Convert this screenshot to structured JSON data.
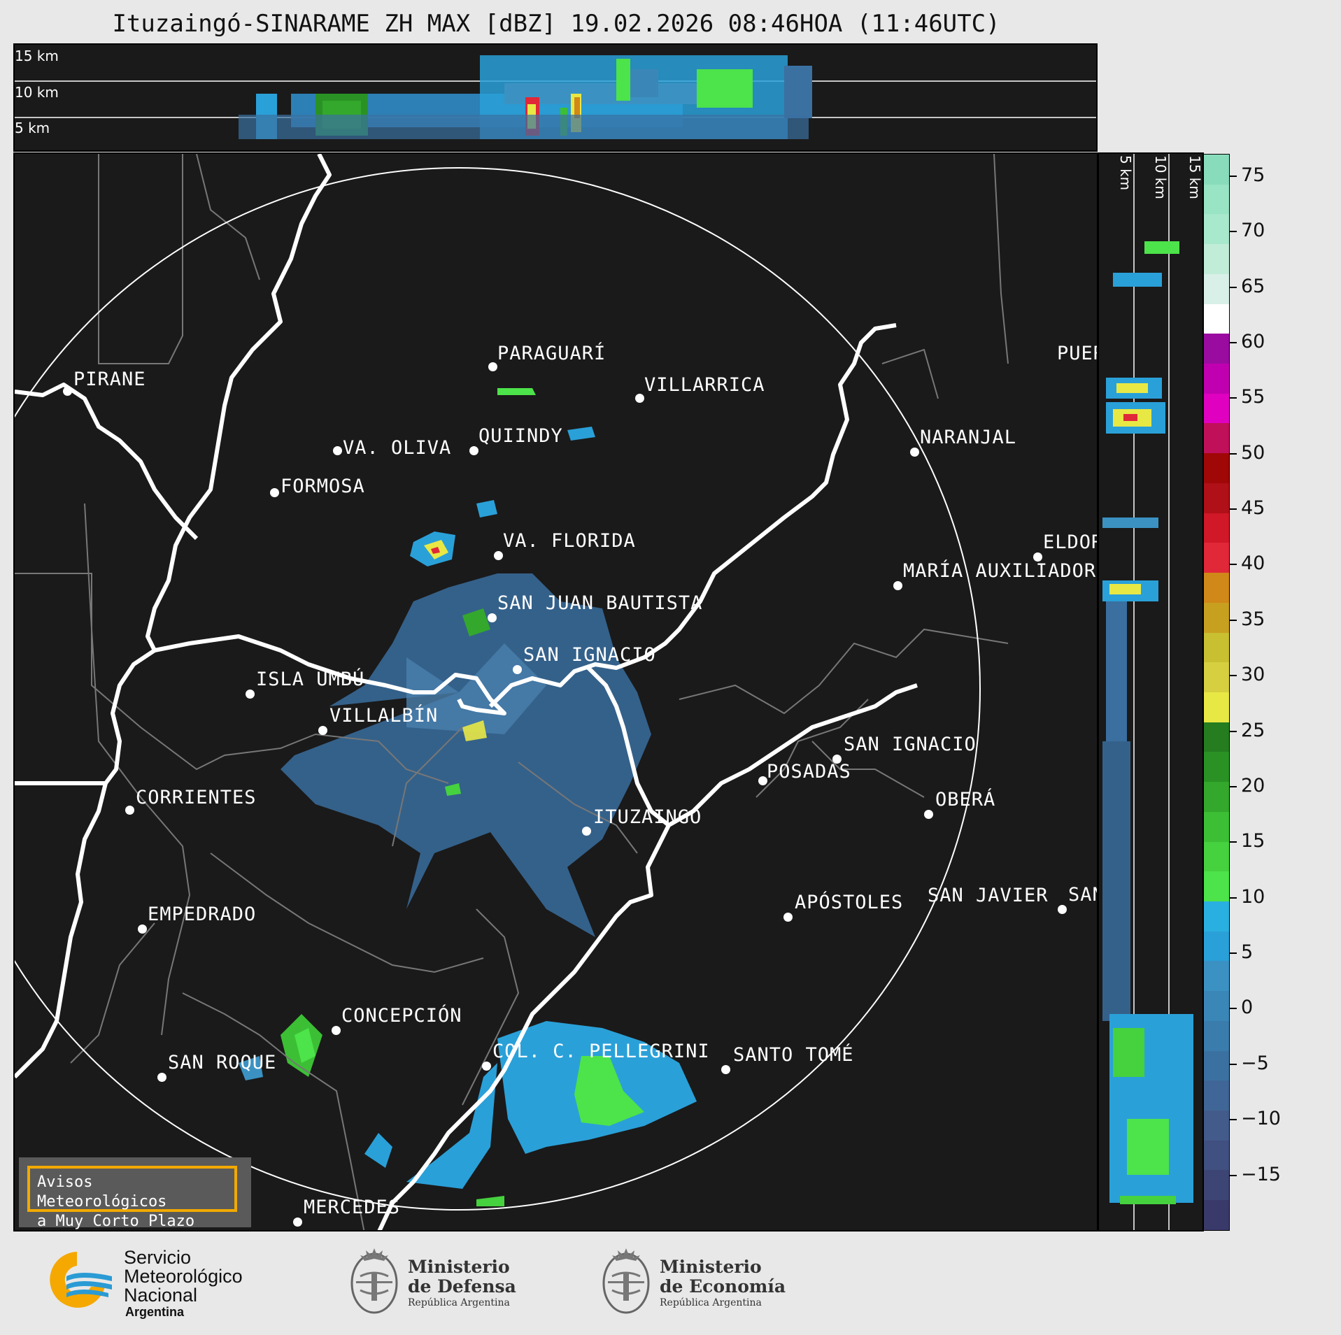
{
  "title": "Ituzaingó-SINARAME ZH MAX [dBZ] 19.02.2026 08:46HOA (11:46UTC)",
  "height_labels_top": [
    "15 km",
    "10 km",
    "5 km"
  ],
  "height_labels_side": [
    "5 km",
    "10 km",
    "15 km"
  ],
  "cities": [
    {
      "name": "PARAGUARÍ"
    },
    {
      "name": "VILLARRICA"
    },
    {
      "name": "PIRANE"
    },
    {
      "name": "QUIINDY"
    },
    {
      "name": "VA. OLIVA"
    },
    {
      "name": "NARANJAL"
    },
    {
      "name": "FORMOSA"
    },
    {
      "name": "VA. FLORIDA"
    },
    {
      "name": "ELDOR"
    },
    {
      "name": "MARÍA AUXILIADOR"
    },
    {
      "name": "SAN JUAN BAUTISTA"
    },
    {
      "name": "SAN IGNACIO"
    },
    {
      "name": "ISLA UMBÚ"
    },
    {
      "name": "VILLALBÍN"
    },
    {
      "name": "SAN IGNACIO"
    },
    {
      "name": "POSADAS"
    },
    {
      "name": "CORRIENTES"
    },
    {
      "name": "ITUZAINGÓ"
    },
    {
      "name": "OBERÁ"
    },
    {
      "name": "EMPEDRADO"
    },
    {
      "name": "APÓSTOLES"
    },
    {
      "name": "SAN JAVIER"
    },
    {
      "name": "SAN"
    },
    {
      "name": "CONCEPCIÓN"
    },
    {
      "name": "COL. C. PELLEGRINI"
    },
    {
      "name": "SANTO TOMÉ"
    },
    {
      "name": "SAN ROQUE"
    },
    {
      "name": "MERCEDES"
    },
    {
      "name": "PUER"
    }
  ],
  "colorbar": {
    "ticks": [
      "75",
      "70",
      "65",
      "60",
      "55",
      "50",
      "45",
      "40",
      "35",
      "30",
      "25",
      "20",
      "15",
      "10",
      "5",
      "0",
      "−5",
      "−10",
      "−15"
    ],
    "min": -20,
    "max": 77,
    "colors": [
      "#3a3a6a",
      "#3d4575",
      "#405080",
      "#435b8b",
      "#3f6696",
      "#3b71a1",
      "#3a7cac",
      "#3a87b7",
      "#3b92c2",
      "#2aa0d8",
      "#2ab0e0",
      "#4de34a",
      "#46d13f",
      "#3cbf35",
      "#33a82c",
      "#2a9225",
      "#257d20",
      "#e8e845",
      "#d6d040",
      "#c8c030",
      "#c8a020",
      "#d08818",
      "#e02838",
      "#d01828",
      "#b01018",
      "#a00808",
      "#c0105a",
      "#e000c0",
      "#c000b0",
      "#9a0ca0",
      "#ffffff",
      "#d8f0e8",
      "#c0ecd8",
      "#a8e8cc",
      "#98e4c4",
      "#88dcbc"
    ]
  },
  "warning": {
    "line1": "Avisos Meteorológicos",
    "line2": "a Muy Corto Plazo"
  },
  "logos": {
    "smn": {
      "line1": "Servicio",
      "line2": "Meteorológico",
      "line3": "Nacional",
      "line4": "Argentina"
    },
    "defensa": {
      "line1": "Ministerio",
      "line2": "de Defensa",
      "line3": "República Argentina"
    },
    "economia": {
      "line1": "Ministerio",
      "line2": "de Economía",
      "line3": "República Argentina"
    }
  }
}
